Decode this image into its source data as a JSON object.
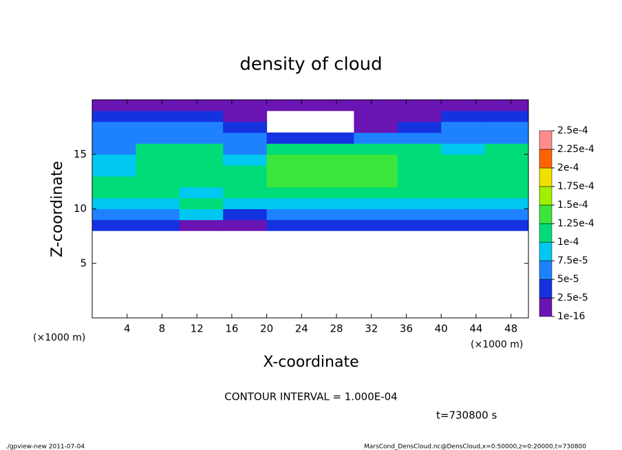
{
  "chart_data": {
    "type": "heatmap",
    "title": "density of cloud",
    "xlabel": "X-coordinate",
    "ylabel": "Z-coordinate",
    "axis_unit": "(×1000 m)",
    "xlim": [
      0,
      50
    ],
    "ylim": [
      0,
      20
    ],
    "xticks": [
      4,
      8,
      12,
      16,
      20,
      24,
      28,
      32,
      36,
      40,
      44,
      48
    ],
    "yticks": [
      5,
      10,
      15
    ],
    "x_edges": [
      0,
      5,
      10,
      15,
      20,
      25,
      30,
      35,
      40,
      45,
      50
    ],
    "y_edges": [
      0,
      1,
      2,
      3,
      4,
      5,
      6,
      7,
      8,
      9,
      10,
      11,
      12,
      13,
      14,
      15,
      16,
      17,
      18,
      19,
      20
    ],
    "z": [
      [
        null,
        null,
        null,
        null,
        null,
        null,
        null,
        null,
        null,
        null
      ],
      [
        null,
        null,
        null,
        null,
        null,
        null,
        null,
        null,
        null,
        null
      ],
      [
        null,
        null,
        null,
        null,
        null,
        null,
        null,
        null,
        null,
        null
      ],
      [
        null,
        null,
        null,
        null,
        null,
        null,
        null,
        null,
        null,
        null
      ],
      [
        null,
        null,
        null,
        null,
        null,
        null,
        null,
        null,
        null,
        null
      ],
      [
        null,
        null,
        null,
        null,
        null,
        null,
        null,
        null,
        null,
        null
      ],
      [
        null,
        null,
        null,
        null,
        null,
        null,
        null,
        null,
        null,
        null
      ],
      [
        null,
        null,
        null,
        null,
        null,
        null,
        null,
        null,
        null,
        null
      ],
      [
        3e-05,
        3e-05,
        2e-05,
        1.5e-05,
        3e-05,
        3e-05,
        3e-05,
        3e-05,
        3e-05,
        3e-05
      ],
      [
        6e-05,
        6e-05,
        8e-05,
        4e-05,
        6e-05,
        6e-05,
        6e-05,
        6e-05,
        6e-05,
        6e-05
      ],
      [
        9e-05,
        9e-05,
        0.0001,
        8e-05,
        9e-05,
        9e-05,
        9e-05,
        9e-05,
        9e-05,
        9e-05
      ],
      [
        0.00011,
        0.00011,
        9e-05,
        0.00012,
        0.00012,
        0.00012,
        0.00012,
        0.00012,
        0.00011,
        0.00011
      ],
      [
        0.00011,
        0.00012,
        0.00011,
        0.00012,
        0.00013,
        0.00013,
        0.00013,
        0.00012,
        0.00012,
        0.00012
      ],
      [
        9e-05,
        0.00012,
        0.00012,
        0.00011,
        0.00013,
        0.00013,
        0.00013,
        0.00012,
        0.00012,
        0.00012
      ],
      [
        8e-05,
        0.00011,
        0.00011,
        9e-05,
        0.00013,
        0.00013,
        0.00013,
        0.00012,
        0.00011,
        0.00011
      ],
      [
        7e-05,
        0.0001,
        0.0001,
        7e-05,
        0.00011,
        0.00012,
        0.00011,
        0.0001,
        9e-05,
        0.0001
      ],
      [
        6e-05,
        6e-05,
        6e-05,
        5e-05,
        4e-05,
        3e-05,
        5e-05,
        7e-05,
        7e-05,
        7e-05
      ],
      [
        5e-05,
        6e-05,
        6e-05,
        4e-05,
        null,
        null,
        2e-05,
        4e-05,
        5e-05,
        5e-05
      ],
      [
        3e-05,
        4e-05,
        4e-05,
        2e-05,
        null,
        null,
        1.5e-05,
        2e-05,
        4e-05,
        3e-05
      ],
      [
        1e-05,
        1e-05,
        1e-05,
        1e-05,
        1e-05,
        1e-05,
        1e-05,
        1e-05,
        1e-05,
        1e-05
      ]
    ],
    "colorbar": {
      "levels": [
        {
          "value": 1e-16,
          "label": "1e-16"
        },
        {
          "value": 2.5e-05,
          "label": "2.5e-5"
        },
        {
          "value": 5e-05,
          "label": "5e-5"
        },
        {
          "value": 7.5e-05,
          "label": "7.5e-5"
        },
        {
          "value": 0.0001,
          "label": "1e-4"
        },
        {
          "value": 0.000125,
          "label": "1.25e-4"
        },
        {
          "value": 0.00015,
          "label": "1.5e-4"
        },
        {
          "value": 0.000175,
          "label": "1.75e-4"
        },
        {
          "value": 0.0002,
          "label": "2e-4"
        },
        {
          "value": 0.000225,
          "label": "2.25e-4"
        },
        {
          "value": 0.00025,
          "label": "2.5e-4"
        }
      ],
      "colors": [
        "#6a14b4",
        "#1432e0",
        "#1e82ff",
        "#00c8f0",
        "#00dc78",
        "#3ce63c",
        "#a0f000",
        "#f0e000",
        "#ff6400",
        "#ff8c8c"
      ]
    },
    "contour_note": "CONTOUR INTERVAL = 1.000E-04",
    "time_note": "t=730800 s",
    "footer_left": "./gpview-new  2011-07-04",
    "footer_right": "MarsCond_DensCloud.nc@DensCloud,x=0:50000,z=0:20000,t=730800"
  }
}
